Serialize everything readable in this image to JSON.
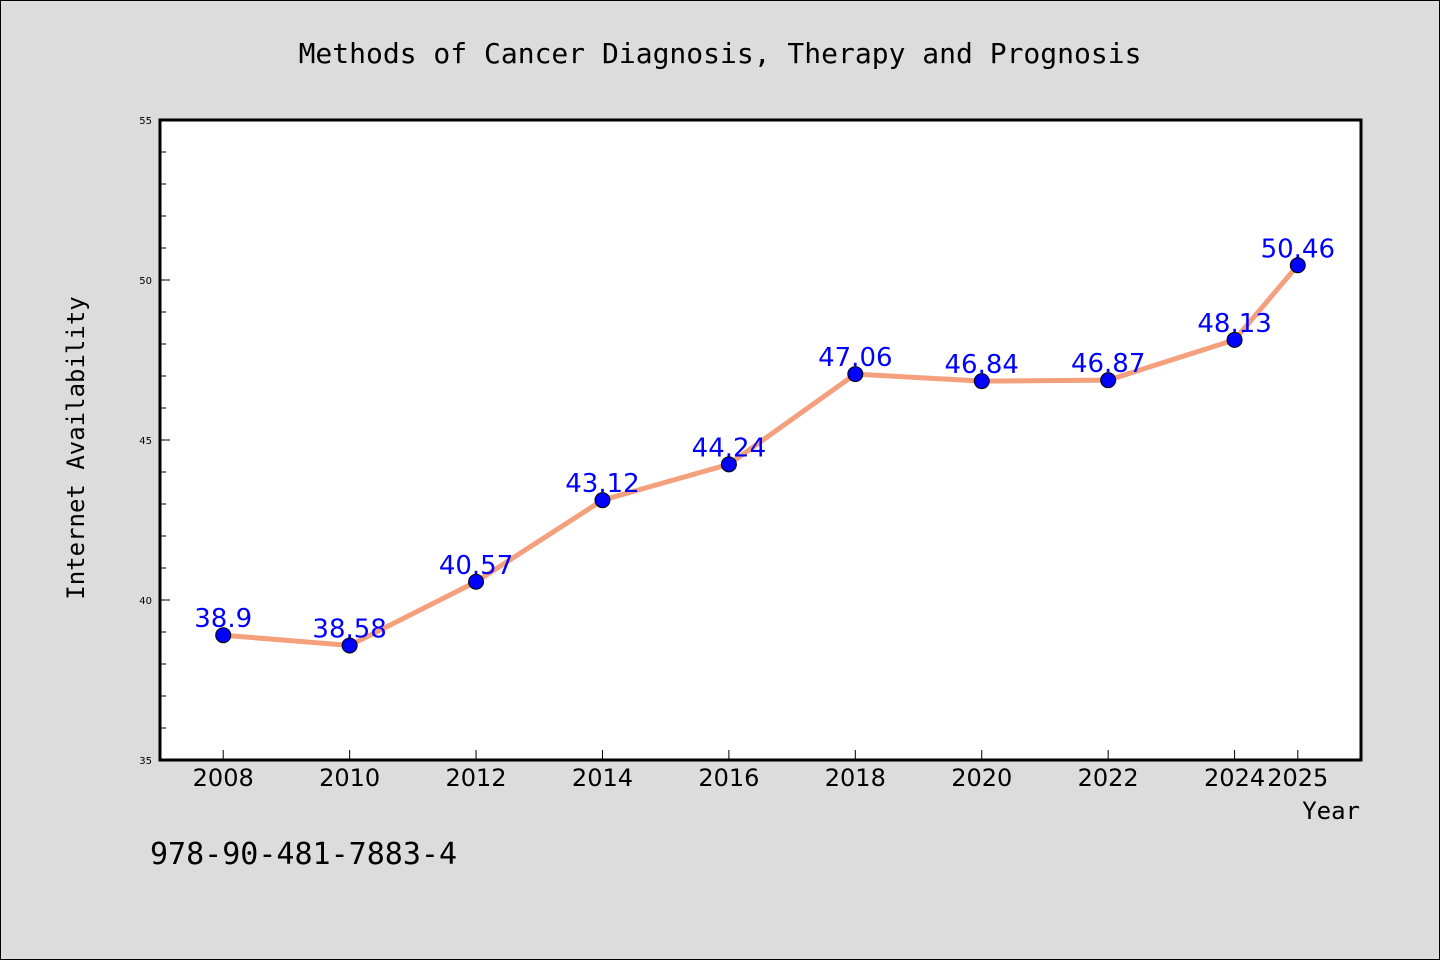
{
  "chart_data": {
    "type": "line",
    "title": "Methods of Cancer Diagnosis, Therapy and Prognosis",
    "xlabel": "Year",
    "ylabel": "Internet Availability",
    "x": [
      "2008",
      "2010",
      "2012",
      "2014",
      "2016",
      "2018",
      "2020",
      "2022",
      "2024",
      "2025"
    ],
    "series": [
      {
        "values": [
          38.9,
          38.58,
          40.57,
          43.12,
          44.24,
          47.06,
          46.84,
          46.87,
          48.13,
          50.46
        ],
        "labels": [
          "38.9",
          "38.58",
          "40.57",
          "43.12",
          "44.24",
          "47.06",
          "46.84",
          "46.87",
          "48.13",
          "50.46"
        ]
      }
    ],
    "ylim": [
      35,
      55
    ],
    "yticks": [
      "35",
      "40",
      "45",
      "50",
      "55"
    ],
    "grid": false,
    "legend": "none",
    "colors": {
      "background": "#dcdcdc",
      "plot_area": "#ffffff",
      "line": "#f4a07c",
      "marker": "#0000ff",
      "data_label": "#0000ff",
      "text": "#000000"
    }
  },
  "isbn": "978-90-481-7883-4"
}
